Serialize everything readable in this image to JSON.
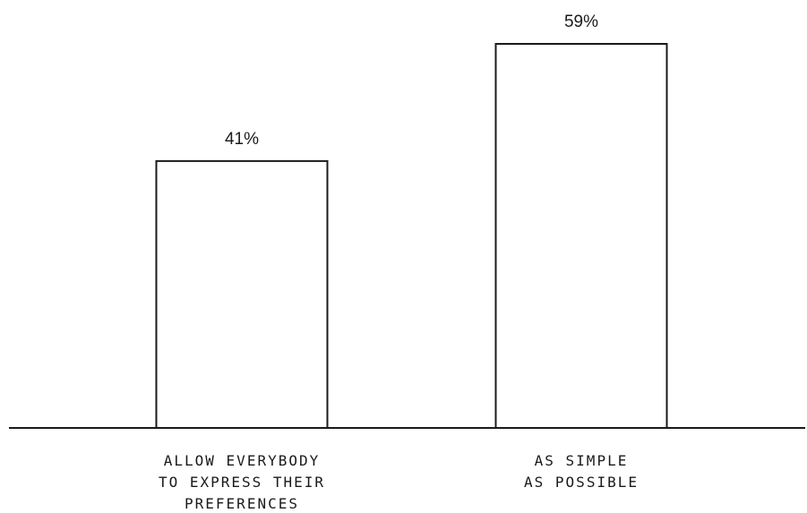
{
  "chart_data": {
    "type": "bar",
    "categories": [
      [
        "ALLOW EVERYBODY",
        "TO EXPRESS THEIR",
        "PREFERENCES"
      ],
      [
        "AS SIMPLE",
        "AS POSSIBLE"
      ]
    ],
    "values": [
      41,
      59
    ],
    "value_labels": [
      "41%",
      "59%"
    ],
    "title": "",
    "xlabel": "",
    "ylabel": "",
    "ylim": [
      0,
      59
    ],
    "grid": false,
    "colors": {
      "bar_fill": "#ffffff",
      "bar_stroke": "#1a1a1a",
      "axis": "#1a1a1a"
    }
  }
}
